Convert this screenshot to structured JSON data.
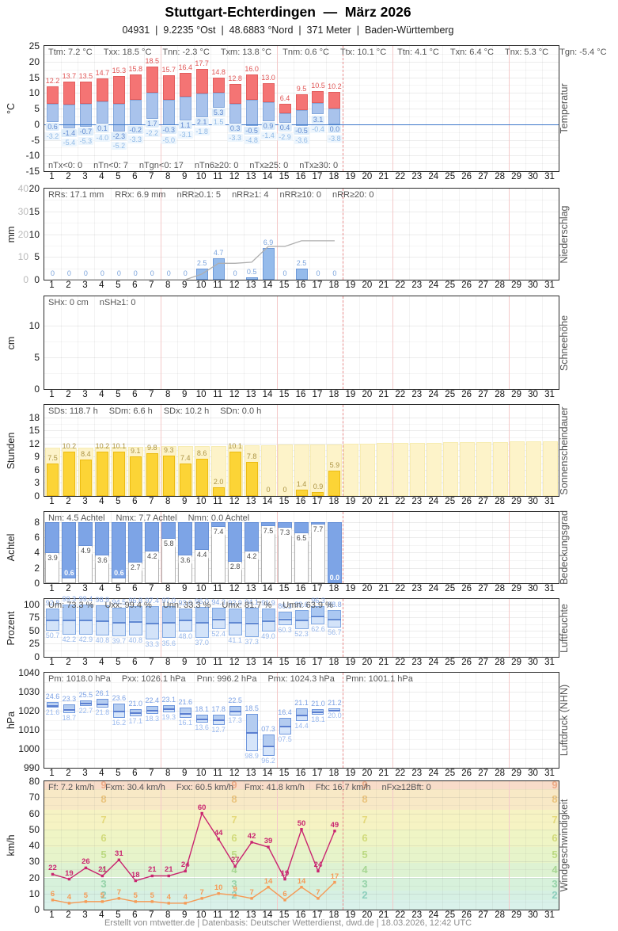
{
  "header": {
    "title": "Stuttgart-Echterdingen  —  März 2026",
    "subtitle": "04931  |  9.2235 °Ost  |  48.6883 °Nord  |  371 Meter  |  Baden-Württemberg"
  },
  "footer": {
    "text": "Erstellt von mtwetter.de | Datenbasis: Deutscher Wetterdienst, dwd.de | 18.03.2026, 12:42 UTC"
  },
  "calendar": {
    "days_in_month": 31,
    "days_observed": 18,
    "current_day_marker_after_day": 18,
    "week_separators_after_days": [
      7,
      14,
      21,
      28
    ]
  },
  "chart_data": [
    {
      "id": "temperatur",
      "type": "temperature-range-bars",
      "title_right": "Temperatur",
      "unit_left": "°C",
      "ylim": [
        -15,
        25
      ],
      "yticks": [
        25,
        20,
        15,
        10,
        5,
        0,
        -5,
        -10,
        -15
      ],
      "stats_top": [
        "Ttm: 7.2 °C",
        "Txx: 18.5 °C",
        "Tnn: -2.3 °C",
        "Txm: 13.8 °C",
        "Tnm: 0.6 °C",
        "Ttx: 10.1 °C",
        "Ttn: 4.1 °C",
        "Txn: 6.4 °C",
        "Tnx: 5.3 °C",
        "Tgn: -5.4 °C"
      ],
      "stats_bottom": [
        "nTx<0: 0",
        "nTn<0: 7",
        "nTgn<0: 17",
        "nTn6≥20: 0",
        "nTx≥25: 0",
        "nTx≥30: 0"
      ],
      "series": {
        "tmax": [
          12.2,
          13.7,
          13.5,
          14.7,
          15.3,
          15.8,
          18.5,
          15.7,
          16.4,
          17.7,
          14.8,
          12.8,
          16.0,
          13.0,
          6.4,
          9.5,
          10.5,
          10.2
        ],
        "tmin": [
          0.6,
          -1.4,
          -0.7,
          0.1,
          -2.3,
          -0.2,
          1.7,
          -0.3,
          1.1,
          2.1,
          5.3,
          0.3,
          -0.5,
          0.9,
          0.4,
          -0.5,
          3.1,
          0.0
        ],
        "tgn": [
          -3.2,
          -5.4,
          -5.3,
          -4.0,
          -5.2,
          -3.3,
          -2.2,
          -5.0,
          -3.1,
          -1.8,
          1.5,
          -3.3,
          -4.8,
          -1.4,
          -2.9,
          -3.6,
          -0.4,
          -3.8
        ]
      },
      "colors": {
        "max_bar": "#f47474",
        "max_border": "#e25d5d",
        "max_label": "#e05454",
        "min_bar": "#a9c3ec",
        "min_border": "#84a8dc",
        "min_label": "#5d87cf",
        "min_label_bg": "#ddecfa",
        "gn_label": "#8fb9e6",
        "gn_label_bg": "#eef6fd",
        "zero_line": "#3b76c9"
      }
    },
    {
      "id": "niederschlag",
      "type": "bars-with-cumulative",
      "title_right": "Niederschlag",
      "unit_left": "mm",
      "ylim": [
        0,
        20
      ],
      "yticks": [
        20,
        15,
        10,
        5,
        0
      ],
      "y2lim": [
        0,
        40
      ],
      "y2ticks": [
        40,
        30,
        20,
        10,
        0
      ],
      "stats_top": [
        "RRs: 17.1 mm",
        "RRx: 6.9 mm",
        "nRR≥0.1: 5",
        "nRR≥1: 4",
        "nRR≥10: 0",
        "nRR≥20: 0"
      ],
      "series": {
        "daily": [
          0,
          0,
          0,
          0,
          0,
          0,
          0,
          0,
          0,
          2.5,
          4.7,
          0,
          0.5,
          6.9,
          0,
          2.5,
          0,
          0
        ],
        "cumulative": [
          0,
          0,
          0,
          0,
          0,
          0,
          0,
          0,
          0,
          2.5,
          7.2,
          7.2,
          7.7,
          14.6,
          14.6,
          17.1,
          17.1,
          17.1
        ]
      },
      "colors": {
        "bar": "#95bbeb",
        "bar_border": "#6d99d8",
        "label": "#7aa3dc",
        "cumulative_line": "#aeaeae"
      }
    },
    {
      "id": "schneehoehe",
      "type": "bars",
      "title_right": "Schneehöhe",
      "unit_left": "cm",
      "ylim": [
        0,
        14.6
      ],
      "yticks": [
        10,
        5,
        0
      ],
      "stats_top": [
        "SHx: 0 cm",
        "nSH≥1: 0"
      ],
      "series": {
        "daily": []
      },
      "colors": {
        "bar": "#95bbeb",
        "bar_border": "#6d99d8",
        "label": "#7aa3dc"
      }
    },
    {
      "id": "sonnenscheindauer",
      "type": "bars-with-background",
      "title_right": "Sonnenscheindauer",
      "unit_left": "Stunden",
      "ylim": [
        0,
        20.9
      ],
      "yticks": [
        18,
        15,
        12,
        9,
        6,
        3,
        0
      ],
      "stats_top": [
        "SDs: 118.7 h",
        "SDm: 6.6 h",
        "SDx: 10.2 h",
        "SDn: 0.0 h"
      ],
      "series": {
        "daily": [
          7.5,
          10.2,
          8.4,
          10.2,
          10.1,
          9.1,
          9.8,
          9.3,
          7.4,
          8.6,
          2.0,
          10.1,
          7.8,
          0,
          0,
          1.4,
          0.9,
          5.9
        ],
        "daylight": [
          11.0,
          11.1,
          11.1,
          11.2,
          11.2,
          11.3,
          11.3,
          11.4,
          11.4,
          11.5,
          11.5,
          11.6,
          11.6,
          11.7,
          11.8,
          11.8,
          11.9,
          11.9,
          12.0,
          12.0,
          12.1,
          12.1,
          12.2,
          12.2,
          12.3,
          12.3,
          12.4,
          12.4,
          12.5,
          12.6,
          12.6
        ]
      },
      "colors": {
        "bar": "#fcd436",
        "bar_border": "#ecbc12",
        "label": "#ab9342",
        "bg_bar": "#fdf3c9",
        "bg_border": "#f7ecb2"
      }
    },
    {
      "id": "bedeckungsgrad",
      "type": "cloud-columns",
      "title_right": "Bedeckungsgrad",
      "unit_left": "Achtel",
      "ylim": [
        0,
        9.35
      ],
      "yticks": [
        8,
        6,
        4,
        2,
        0
      ],
      "max_scale": 8,
      "stats_top": [
        "Nm: 4.5 Achtel",
        "Nmx: 7.7 Achtel",
        "Nmn: 0.0 Achtel"
      ],
      "series": {
        "daily": [
          3.9,
          0.6,
          4.9,
          3.6,
          0.6,
          2.7,
          4.2,
          5.8,
          3.6,
          4.4,
          7.4,
          2.8,
          4.2,
          7.5,
          7.3,
          6.5,
          7.7,
          0.0
        ]
      },
      "colors": {
        "cloud": "#7da4e6",
        "cloud_border": "#6790d6",
        "clear": "#ffffff",
        "col_border": "#b0b0b0",
        "label": "#4a4a4a",
        "label_on_blue": "#ffffff"
      }
    },
    {
      "id": "luftfeuchte",
      "type": "range-bars",
      "title_right": "Luftfeuchte",
      "unit_left": "Prozent",
      "ylim": [
        0,
        110.6
      ],
      "yticks": [
        100,
        75,
        50,
        25,
        0
      ],
      "stats_top": [
        "Um: 73.3 %",
        "Uxx: 99.4 %",
        "Unn: 33.3 %",
        "Umx: 81.7 %",
        "Umn: 63.9 %"
      ],
      "series": {
        "max": [
          92.8,
          99.3,
          99.4,
          98.9,
          94.5,
          96.8,
          97.4,
          97.0,
          93.0,
          96.0,
          94.3,
          92.9,
          94.1,
          91.9,
          86.3,
          89.6,
          96.3,
          88.8
        ],
        "min": [
          50.7,
          42.2,
          42.9,
          40.8,
          39.7,
          40.8,
          33.3,
          35.6,
          48.0,
          37.0,
          52.4,
          41.1,
          37.3,
          49.0,
          60.3,
          52.3,
          62.6,
          56.7
        ]
      },
      "colors": {
        "bar_top": "#abc8f2",
        "bar_bottom": "#d3e3f9",
        "border": "#7fa7e2",
        "mean_line": "#6189d2",
        "label": "#82a6e4",
        "label_light": "#97b7ea"
      }
    },
    {
      "id": "luftdruck",
      "type": "range-bars",
      "title_right": "Luftdruck (NHN)",
      "unit_left": "hPa",
      "ylim": [
        990,
        1040
      ],
      "yticks": [
        1040,
        1030,
        1020,
        1010,
        1000,
        990
      ],
      "label_mode": "mod100",
      "stats_top": [
        "Pm: 1018.0 hPa",
        "Pxx: 1026.1 hPa",
        "Pnn: 996.2 hPa",
        "Pmx: 1024.3 hPa",
        "Pmn: 1001.1 hPa"
      ],
      "series": {
        "max": [
          1024.6,
          1023.3,
          1025.5,
          1026.1,
          1023.6,
          1021.0,
          1022.4,
          1023.1,
          1021.6,
          1018.1,
          1017.8,
          1022.5,
          1018.5,
          1007.3,
          1016.4,
          1021.1,
          1021.0,
          1021.2
        ],
        "min": [
          1021.6,
          1018.7,
          1022.7,
          1021.8,
          1016.2,
          1017.1,
          1018.3,
          1019.3,
          1016.1,
          1013.6,
          1012.7,
          1017.3,
          998.9,
          996.2,
          1007.5,
          1014.4,
          1018.1,
          1020.0
        ]
      },
      "colors": {
        "bar_top": "#b4ccf0",
        "bar_bottom": "#d6e5fa",
        "border": "#6f97dd",
        "mean_line": "#5b7fd0",
        "label": "#7aa0e4",
        "label_light": "#9ab9ee"
      }
    },
    {
      "id": "windgeschwindigkeit",
      "type": "lines-with-bands",
      "title_right": "Windgeschwindigkeit",
      "unit_left": "km/h",
      "ylim": [
        0,
        80
      ],
      "yticks": [
        80,
        70,
        60,
        50,
        40,
        30,
        20,
        10,
        0
      ],
      "stats_top": [
        "Ff: 7.2 km/h",
        "Fxm: 30.4 km/h",
        "Fxx: 60.5 km/h",
        "Fmx: 41.8 km/h",
        "Ffx: 16.7 km/h",
        "nFx≥12Bft: 0"
      ],
      "series": [
        {
          "name": "Fx",
          "color": "#c92570",
          "values": [
            22,
            19,
            26,
            21,
            31,
            18,
            21,
            21,
            24,
            60,
            44,
            27,
            42,
            39,
            19,
            50,
            24,
            49
          ]
        },
        {
          "name": "Ff",
          "color": "#f59b57",
          "values": [
            6,
            4,
            5,
            5,
            7,
            5,
            5,
            4,
            4,
            7,
            10,
            9,
            7,
            14,
            6,
            14,
            7,
            17
          ]
        }
      ],
      "beaufort_bands": [
        {
          "from": 0,
          "to": 6,
          "color": "#d9f1ea"
        },
        {
          "from": 6,
          "to": 12,
          "bft": "2",
          "color": "#d6f0e3",
          "num_color": "#8ccfbc"
        },
        {
          "from": 12,
          "to": 20,
          "bft": "3",
          "color": "#d7f1db",
          "num_color": "#95d3a8"
        },
        {
          "from": 20,
          "to": 29,
          "bft": "4",
          "color": "#def2d2",
          "num_color": "#a7d793"
        },
        {
          "from": 29,
          "to": 39,
          "bft": "5",
          "color": "#e7f4ca",
          "num_color": "#bddb83"
        },
        {
          "from": 39,
          "to": 50,
          "bft": "6",
          "color": "#eff5c5",
          "num_color": "#d3dc7c"
        },
        {
          "from": 50,
          "to": 62,
          "bft": "7",
          "color": "#f6f3c3",
          "num_color": "#e5da7b"
        },
        {
          "from": 62,
          "to": 75,
          "bft": "8",
          "color": "#f8e9c6",
          "num_color": "#eac47e"
        },
        {
          "from": 75,
          "to": 80,
          "bft": "9",
          "color": "#f8dcc9",
          "num_color": "#eeab87"
        }
      ]
    }
  ]
}
